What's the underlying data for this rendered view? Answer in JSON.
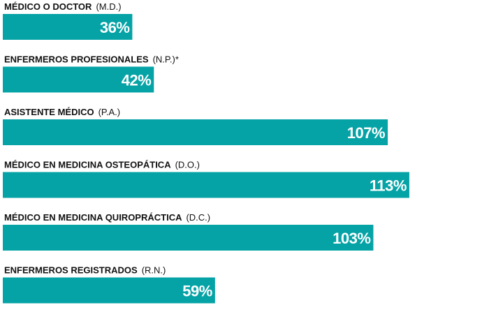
{
  "chart_data": {
    "type": "bar",
    "orientation": "horizontal",
    "categories": [
      "MÉDICO O DOCTOR",
      "ENFERMEROS PROFESIONALES",
      "ASISTENTE MÉDICO",
      "MÉDICO EN MEDICINA OSTEOPÁTICA",
      "MÉDICO EN MEDICINA QUIROPRÁCTICA",
      "ENFERMEROS REGISTRADOS"
    ],
    "abbreviations": [
      "(M.D.)",
      "(N.P.)*",
      "(P.A.)",
      "(D.O.)",
      "(D.C.)",
      "(R.N.)"
    ],
    "values": [
      36,
      42,
      107,
      113,
      103,
      59
    ],
    "value_labels": [
      "36%",
      "42%",
      "107%",
      "113%",
      "103%",
      "59%"
    ],
    "color": "#05a3a6"
  }
}
